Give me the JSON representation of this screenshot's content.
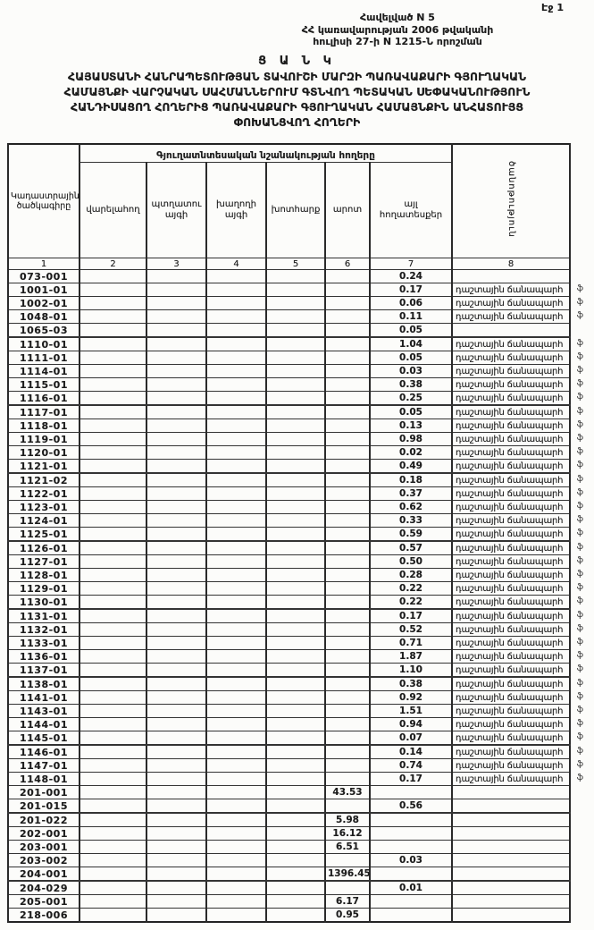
{
  "page": {
    "page_label": "Էջ 1"
  },
  "annex": {
    "line1": "Հավելված N 5",
    "line2": "ՀՀ կառավարության 2006 թվականի",
    "line3": "հուլիսի 27-ի N 1215-Ն որոշման"
  },
  "title": {
    "line1": "Ց Ա Ն Կ",
    "line2": "ՀԱՅԱՍՏԱՆԻ ՀԱՆՐԱՊԵՏՈՒԹՅԱՆ ՏԱՎՈՒՇԻ ՄԱՐԶԻ ՊԱՌԱՎԱՔԱՐԻ ԳՅՈՒՂԱԿԱՆ",
    "line3": "ՀԱՄԱՅՆՔԻ ՎԱՐՉԱԿԱՆ ՍԱՀՄԱՆՆԵՐՈՒՄ ԳՏՆՎՈՂ ՊԵՏԱԿԱՆ ՍԵՓԱԿԱՆՈՒԹՅՈՒՆ",
    "line4": "ՀԱՆԴԻՍԱՑՈՂ ՀՈՂԵՐԻՑ ՊԱՌԱՎԱՔԱՐԻ ԳՅՈՒՂԱԿԱՆ ՀԱՄԱՅՆՔԻՆ ԱՆՀԱՏՈՒՅՑ",
    "line5": "ՓՈԽԱՆՑՎՈՂ ՀՈՂԵՐԻ"
  },
  "table": {
    "group_header": "Գյուղատնտեսական նշանակության հողերը",
    "col_headers": {
      "code": "Կադաստրային ծածկագիրը",
      "arable": "վարելահող",
      "orchard": "պտղատու այգի",
      "vineyard": "խաղողի այգի",
      "hay": "խոտհարք",
      "pasture": "արոտ",
      "other": "այլ հողատեսքեր",
      "note": "ծանոթություն"
    },
    "column_numbers": [
      "1",
      "2",
      "3",
      "4",
      "5",
      "6",
      "7",
      "8"
    ],
    "note_text": "դաշտային ճանապարհ",
    "margin_mark": "ֆ",
    "rows": [
      {
        "code": "073-001",
        "other": "0.24",
        "note": false
      },
      {
        "code": "1001-01",
        "other": "0.17",
        "note": true
      },
      {
        "code": "1002-01",
        "other": "0.06",
        "note": true
      },
      {
        "code": "1048-01",
        "other": "0.11",
        "note": true
      },
      {
        "code": "1065-03",
        "other": "0.05",
        "note": false
      },
      {
        "code": "1110-01",
        "other": "1.04",
        "note": true
      },
      {
        "code": "1111-01",
        "other": "0.05",
        "note": true
      },
      {
        "code": "1114-01",
        "other": "0.03",
        "note": true
      },
      {
        "code": "1115-01",
        "other": "0.38",
        "note": true
      },
      {
        "code": "1116-01",
        "other": "0.25",
        "note": true
      },
      {
        "code": "1117-01",
        "other": "0.05",
        "note": true
      },
      {
        "code": "1118-01",
        "other": "0.13",
        "note": true
      },
      {
        "code": "1119-01",
        "other": "0.98",
        "note": true
      },
      {
        "code": "1120-01",
        "other": "0.02",
        "note": true
      },
      {
        "code": "1121-01",
        "other": "0.49",
        "note": true
      },
      {
        "code": "1121-02",
        "other": "0.18",
        "note": true
      },
      {
        "code": "1122-01",
        "other": "0.37",
        "note": true
      },
      {
        "code": "1123-01",
        "other": "0.62",
        "note": true
      },
      {
        "code": "1124-01",
        "other": "0.33",
        "note": true
      },
      {
        "code": "1125-01",
        "other": "0.59",
        "note": true
      },
      {
        "code": "1126-01",
        "other": "0.57",
        "note": true
      },
      {
        "code": "1127-01",
        "other": "0.50",
        "note": true
      },
      {
        "code": "1128-01",
        "other": "0.28",
        "note": true
      },
      {
        "code": "1129-01",
        "other": "0.22",
        "note": true
      },
      {
        "code": "1130-01",
        "other": "0.22",
        "note": true
      },
      {
        "code": "1131-01",
        "other": "0.17",
        "note": true
      },
      {
        "code": "1132-01",
        "other": "0.52",
        "note": true
      },
      {
        "code": "1133-01",
        "other": "0.71",
        "note": true
      },
      {
        "code": "1136-01",
        "other": "1.87",
        "note": true
      },
      {
        "code": "1137-01",
        "other": "1.10",
        "note": true
      },
      {
        "code": "1138-01",
        "other": "0.38",
        "note": true
      },
      {
        "code": "1141-01",
        "other": "0.92",
        "note": true
      },
      {
        "code": "1143-01",
        "other": "1.51",
        "note": true
      },
      {
        "code": "1144-01",
        "other": "0.94",
        "note": true
      },
      {
        "code": "1145-01",
        "other": "0.07",
        "note": true
      },
      {
        "code": "1146-01",
        "other": "0.14",
        "note": true
      },
      {
        "code": "1147-01",
        "other": "0.74",
        "note": true
      },
      {
        "code": "1148-01",
        "other": "0.17",
        "note": true
      },
      {
        "code": "201-001",
        "pasture": "43.53",
        "note": false
      },
      {
        "code": "201-015",
        "other": "0.56",
        "note": false
      },
      {
        "code": "201-022",
        "pasture": "5.98",
        "note": false
      },
      {
        "code": "202-001",
        "pasture": "16.12",
        "note": false
      },
      {
        "code": "203-001",
        "pasture": "6.51",
        "note": false
      },
      {
        "code": "203-002",
        "other": "0.03",
        "note": false
      },
      {
        "code": "204-001",
        "pasture": "1396.45",
        "note": false
      },
      {
        "code": "204-029",
        "other": "0.01",
        "note": false
      },
      {
        "code": "205-001",
        "pasture": "6.17",
        "note": false
      },
      {
        "code": "218-006",
        "pasture": "0.95",
        "note": false
      }
    ]
  }
}
